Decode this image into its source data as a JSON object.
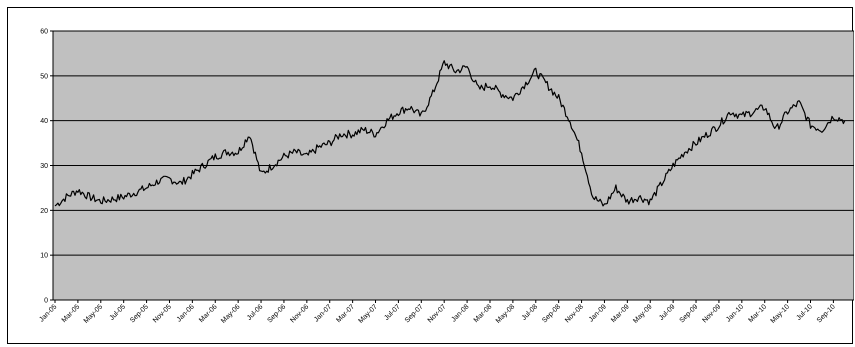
{
  "chart_data": {
    "type": "line",
    "title": "",
    "xlabel": "",
    "ylabel": "",
    "ylim": [
      0,
      60
    ],
    "yticks": [
      0,
      10,
      20,
      30,
      40,
      50,
      60
    ],
    "grid": true,
    "legend": "none",
    "colors": {
      "plot_background": "#c0c0c0",
      "line": "#000000",
      "gridline": "#000000"
    },
    "xtick_labels": [
      "Jan-05",
      "Mar-05",
      "May-05",
      "Jul-05",
      "Sep-05",
      "Nov-05",
      "Jan-06",
      "Mar-06",
      "May-06",
      "Jul-06",
      "Sep-06",
      "Nov-06",
      "Jan-07",
      "Mar-07",
      "May-07",
      "Jul-07",
      "Sep-07",
      "Nov-07",
      "Jan-08",
      "Mar-08",
      "May-08",
      "Jul-08",
      "Sep-08",
      "Nov-08",
      "Jan-09",
      "Mar-09",
      "May-09",
      "Jul-09",
      "Sep-09",
      "Nov-09",
      "Jan-10",
      "Mar-10",
      "May-10",
      "Jul-10",
      "Sep-10"
    ],
    "series": [
      {
        "name": "",
        "x": [
          "Jan-05",
          "Feb-05",
          "Mar-05",
          "Apr-05",
          "May-05",
          "Jun-05",
          "Jul-05",
          "Aug-05",
          "Sep-05",
          "Oct-05",
          "Nov-05",
          "Dec-05",
          "Jan-06",
          "Feb-06",
          "Mar-06",
          "Apr-06",
          "May-06",
          "Jun-06",
          "Jul-06",
          "Aug-06",
          "Sep-06",
          "Oct-06",
          "Nov-06",
          "Dec-06",
          "Jan-07",
          "Feb-07",
          "Mar-07",
          "Apr-07",
          "May-07",
          "Jun-07",
          "Jul-07",
          "Aug-07",
          "Sep-07",
          "Oct-07",
          "Nov-07",
          "Dec-07",
          "Jan-08",
          "Feb-08",
          "Mar-08",
          "Apr-08",
          "May-08",
          "Jun-08",
          "Jul-08",
          "Aug-08",
          "Sep-08",
          "Oct-08",
          "Nov-08",
          "Dec-08",
          "Jan-09",
          "Feb-09",
          "Mar-09",
          "Apr-09",
          "May-09",
          "Jun-09",
          "Jul-09",
          "Aug-09",
          "Sep-09",
          "Oct-09",
          "Nov-09",
          "Dec-09",
          "Jan-10",
          "Feb-10",
          "Mar-10",
          "Apr-10",
          "May-10",
          "Jun-10",
          "Jul-10",
          "Aug-10",
          "Sep-10",
          "Oct-10"
        ],
        "values": [
          21,
          23,
          24.5,
          23,
          22,
          22.5,
          23,
          24,
          25,
          26.5,
          27,
          26,
          28,
          30,
          32,
          33,
          33,
          37,
          28,
          30,
          32,
          33,
          32,
          34,
          35,
          37,
          37,
          38,
          37,
          40,
          42,
          43,
          41,
          46,
          53,
          51,
          52,
          47,
          48,
          46,
          45,
          48,
          51,
          48,
          45,
          40,
          33,
          23,
          21,
          25,
          22,
          23,
          22,
          26,
          30,
          33,
          35,
          37,
          39,
          42,
          41,
          42,
          43,
          38,
          42,
          44,
          39,
          38,
          41,
          40
        ]
      }
    ]
  }
}
